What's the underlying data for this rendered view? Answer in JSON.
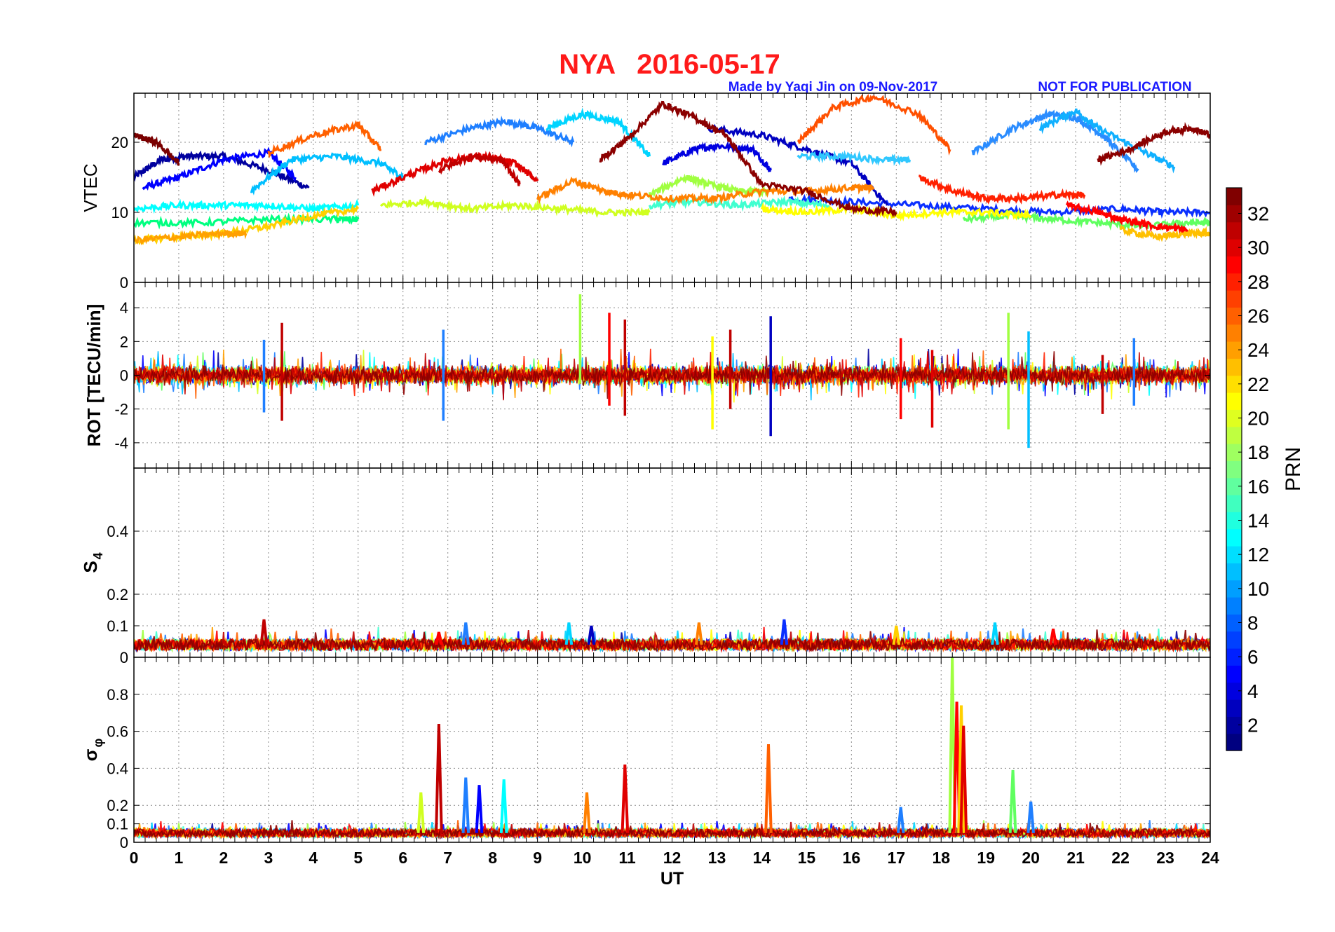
{
  "figure": {
    "station": "NYA",
    "date": "2016-05-17",
    "credit": "Made by Yaqi Jin on 09-Nov-2017",
    "disclaimer": "NOT FOR PUBLICATION"
  },
  "colors": {
    "title": "#ff1a1a",
    "credit": "#1a1aff",
    "axis": "#000000",
    "grid": "#8c8c8c"
  },
  "chart_data": [
    {
      "type": "line",
      "panel": "vtec",
      "ylabel": "VTEC",
      "ylim": [
        0,
        27
      ],
      "yticks": [
        0,
        10,
        20
      ],
      "xlim": [
        0,
        24
      ],
      "grid": true,
      "series": [
        {
          "prn": 2,
          "color": "#00009f",
          "x": [
            0.0,
            0.6,
            1.2,
            2.0,
            3.0,
            3.9
          ],
          "values": [
            15,
            17.5,
            18,
            18,
            16,
            13.5
          ]
        },
        {
          "prn": 4,
          "color": "#0000ff",
          "x": [
            0.2,
            1.0,
            2.0,
            3.0,
            3.6
          ],
          "values": [
            13.5,
            15,
            17.5,
            18.5,
            15
          ]
        },
        {
          "prn": 5,
          "color": "#0a2fff",
          "x": [
            14.6,
            16.0,
            17.5,
            19.0,
            20.5,
            22.0,
            23.0,
            24.0
          ],
          "values": [
            12,
            11.5,
            11,
            10.5,
            10,
            10.5,
            10,
            10
          ]
        },
        {
          "prn": 6,
          "color": "#0000e0",
          "x": [
            11.8,
            12.5,
            13.0,
            13.8,
            14.2
          ],
          "values": [
            17,
            19,
            19.5,
            19,
            16
          ]
        },
        {
          "prn": 7,
          "color": "#0000c0",
          "x": [
            12.8,
            14.0,
            15.0,
            16.0,
            16.8
          ],
          "values": [
            22,
            21,
            19,
            17,
            11
          ]
        },
        {
          "prn": 8,
          "color": "#1f7fff",
          "x": [
            6.5,
            7.5,
            8.3,
            9.0,
            9.8
          ],
          "values": [
            20,
            22,
            23,
            22,
            20
          ]
        },
        {
          "prn": 9,
          "color": "#2a8cff",
          "x": [
            18.7,
            19.6,
            20.4,
            21.0,
            21.6,
            22.4
          ],
          "values": [
            18.5,
            22,
            24,
            23.5,
            21,
            16
          ]
        },
        {
          "prn": 10,
          "color": "#00bfff",
          "x": [
            2.6,
            3.5,
            4.5,
            5.5,
            6.0
          ],
          "values": [
            13,
            17.5,
            18,
            17,
            15
          ]
        },
        {
          "prn": 11,
          "color": "#00d4ff",
          "x": [
            9.2,
            10.0,
            10.8,
            11.5
          ],
          "values": [
            22,
            24,
            23,
            18
          ]
        },
        {
          "prn": 12,
          "color": "#30c8ff",
          "x": [
            14.8,
            15.8,
            16.8,
            17.3
          ],
          "values": [
            18,
            18,
            17.5,
            17.5
          ]
        },
        {
          "prn": 13,
          "color": "#10b0ff",
          "x": [
            20.2,
            21.0,
            21.5,
            22.4,
            23.2
          ],
          "values": [
            22,
            24.5,
            22,
            19,
            16.5
          ]
        },
        {
          "prn": 14,
          "color": "#00ffff",
          "x": [
            0.0,
            1.0,
            2.0,
            3.0,
            4.0,
            5.0
          ],
          "values": [
            10.5,
            11,
            11,
            11,
            10.5,
            11
          ]
        },
        {
          "prn": 15,
          "color": "#40ffd0",
          "x": [
            11.5,
            12.5,
            13.5,
            14.5,
            15.5
          ],
          "values": [
            11,
            11.5,
            11,
            11.5,
            11
          ]
        },
        {
          "prn": 16,
          "color": "#00ff80",
          "x": [
            0.0,
            1.5,
            3.0,
            4.5,
            5.0
          ],
          "values": [
            8.5,
            8.5,
            9,
            9,
            9
          ]
        },
        {
          "prn": 17,
          "color": "#60ff60",
          "x": [
            18.5,
            19.5,
            20.5,
            21.5,
            22.5,
            23.5,
            24.0
          ],
          "values": [
            9,
            9.5,
            9,
            8.5,
            8,
            8.5,
            8.5
          ]
        },
        {
          "prn": 18,
          "color": "#a0ff40",
          "x": [
            11.5,
            12.3,
            12.8,
            13.5,
            14.2
          ],
          "values": [
            12.5,
            15,
            14,
            13,
            13
          ]
        },
        {
          "prn": 19,
          "color": "#d0ff20",
          "x": [
            5.5,
            6.5,
            7.5,
            8.5,
            9.5,
            10.5,
            11.5
          ],
          "values": [
            11,
            11.5,
            10.5,
            11,
            10.5,
            10,
            10
          ]
        },
        {
          "prn": 20,
          "color": "#ffff00",
          "x": [
            14.0,
            15.0,
            16.0,
            17.0,
            18.0,
            19.0,
            20.0
          ],
          "values": [
            10.5,
            10,
            10.5,
            9.5,
            10,
            10,
            9.5
          ]
        },
        {
          "prn": 22,
          "color": "#ffd000",
          "x": [
            0.0,
            1.0,
            2.0,
            3.0,
            4.0,
            5.0
          ],
          "values": [
            6,
            6.5,
            7,
            8,
            9.5,
            10.5
          ]
        },
        {
          "prn": 23,
          "color": "#ffc000",
          "x": [
            22.0,
            22.8,
            23.5,
            24.0
          ],
          "values": [
            7.5,
            6.5,
            7,
            7
          ]
        },
        {
          "prn": 24,
          "color": "#ffa000",
          "x": [
            0.0,
            1.0,
            2.0,
            2.5
          ],
          "values": [
            6,
            6.5,
            7,
            7
          ]
        },
        {
          "prn": 25,
          "color": "#ff8000",
          "x": [
            9.0,
            9.8,
            10.5,
            11.0,
            12.0,
            13.0,
            14.0,
            15.0,
            16.0,
            16.5
          ],
          "values": [
            12,
            14.5,
            13,
            12.5,
            12,
            12,
            13,
            13,
            13.5,
            13.5
          ]
        },
        {
          "prn": 26,
          "color": "#ff6000",
          "x": [
            3.0,
            4.0,
            5.0,
            5.5
          ],
          "values": [
            18.5,
            21,
            22.5,
            19
          ]
        },
        {
          "prn": 27,
          "color": "#ff5000",
          "x": [
            14.8,
            15.6,
            16.5,
            17.5,
            18.2
          ],
          "values": [
            20,
            25,
            26.5,
            24,
            19
          ]
        },
        {
          "prn": 28,
          "color": "#ff2000",
          "x": [
            17.5,
            18.3,
            19.0,
            19.8,
            20.6,
            21.2
          ],
          "values": [
            15,
            13,
            12,
            12,
            12.5,
            12.5
          ]
        },
        {
          "prn": 29,
          "color": "#ff0000",
          "x": [
            20.8,
            21.5,
            22.0,
            22.8,
            23.5
          ],
          "values": [
            11,
            10,
            9,
            8,
            7.5
          ]
        },
        {
          "prn": 30,
          "color": "#e00000",
          "x": [
            5.3,
            6.2,
            7.0,
            7.8,
            8.5,
            9.0
          ],
          "values": [
            13,
            15.5,
            17.5,
            18,
            17,
            14.5
          ]
        },
        {
          "prn": 31,
          "color": "#c00000",
          "x": [
            6.8,
            7.5,
            8.2,
            8.6
          ],
          "values": [
            16,
            18,
            17.5,
            14
          ]
        },
        {
          "prn": 32,
          "color": "#8b0000",
          "x": [
            10.4,
            11.0,
            11.8,
            12.5,
            13.2,
            14.0,
            15.0,
            16.0,
            17.0
          ],
          "values": [
            17.5,
            20.5,
            25.5,
            23.5,
            21,
            14,
            13,
            10.5,
            10
          ]
        },
        {
          "prn": 33,
          "color": "#7a0000",
          "x": [
            0.0,
            0.5,
            1.0
          ],
          "values": [
            21,
            20,
            17
          ]
        },
        {
          "prn": 32,
          "color": "#8b0000",
          "x": [
            21.5,
            22.2,
            23.0,
            23.6,
            24.0
          ],
          "values": [
            17.5,
            19,
            21.5,
            22,
            21
          ]
        }
      ]
    },
    {
      "type": "line",
      "panel": "rot",
      "ylabel": "ROT [TECU/min]",
      "ylim": [
        -5.5,
        5.5
      ],
      "yticks": [
        -4,
        -2,
        0,
        2,
        4
      ],
      "xlim": [
        0,
        24
      ],
      "grid": true,
      "spikes": [
        {
          "x": 3.3,
          "min": -2.7,
          "max": 3.1,
          "color": "#c00000"
        },
        {
          "x": 2.9,
          "min": -2.2,
          "max": 2.1,
          "color": "#1f7fff"
        },
        {
          "x": 6.9,
          "min": -2.7,
          "max": 2.7,
          "color": "#1f7fff"
        },
        {
          "x": 9.95,
          "min": -0.5,
          "max": 4.8,
          "color": "#a0ff40"
        },
        {
          "x": 10.6,
          "min": -1.8,
          "max": 3.7,
          "color": "#ff0000"
        },
        {
          "x": 10.95,
          "min": -2.4,
          "max": 3.3,
          "color": "#c00000"
        },
        {
          "x": 12.9,
          "min": -3.2,
          "max": 2.3,
          "color": "#ffff00"
        },
        {
          "x": 13.3,
          "min": -2.0,
          "max": 2.7,
          "color": "#c00000"
        },
        {
          "x": 14.2,
          "min": -3.6,
          "max": 3.5,
          "color": "#0000c0"
        },
        {
          "x": 17.1,
          "min": -2.6,
          "max": 2.2,
          "color": "#ff0000"
        },
        {
          "x": 17.8,
          "min": -3.1,
          "max": 1.5,
          "color": "#e00000"
        },
        {
          "x": 19.5,
          "min": -3.2,
          "max": 3.7,
          "color": "#a0ff40"
        },
        {
          "x": 19.95,
          "min": -4.3,
          "max": 2.6,
          "color": "#00bfff"
        },
        {
          "x": 21.6,
          "min": -2.3,
          "max": 1.2,
          "color": "#c00000"
        },
        {
          "x": 22.3,
          "min": -1.8,
          "max": 2.2,
          "color": "#1f7fff"
        }
      ],
      "noise_band": 0.5
    },
    {
      "type": "line",
      "panel": "s4",
      "ylabel": "S",
      "ylabel_sub": "4",
      "ylim": [
        0,
        0.6
      ],
      "yticks": [
        0,
        0.1,
        0.2,
        0.4
      ],
      "xlim": [
        0,
        24
      ],
      "grid": true,
      "baseline": 0.04,
      "peaks": [
        {
          "x": 2.9,
          "y": 0.12,
          "color": "#c00000"
        },
        {
          "x": 6.8,
          "y": 0.08,
          "color": "#ff0000"
        },
        {
          "x": 7.4,
          "y": 0.11,
          "color": "#1f7fff"
        },
        {
          "x": 9.7,
          "y": 0.11,
          "color": "#00d4ff"
        },
        {
          "x": 10.2,
          "y": 0.1,
          "color": "#0000c0"
        },
        {
          "x": 12.6,
          "y": 0.11,
          "color": "#ff8000"
        },
        {
          "x": 14.5,
          "y": 0.12,
          "color": "#0a2fff"
        },
        {
          "x": 17.0,
          "y": 0.1,
          "color": "#ffd000"
        },
        {
          "x": 19.2,
          "y": 0.11,
          "color": "#00d4ff"
        },
        {
          "x": 20.5,
          "y": 0.09,
          "color": "#ff0000"
        }
      ]
    },
    {
      "type": "line",
      "panel": "sigma-phi",
      "ylabel": "σ",
      "ylabel_sub": "φ",
      "ylim": [
        0,
        1.0
      ],
      "yticks": [
        0,
        0.1,
        0.2,
        0.4,
        0.6,
        0.8
      ],
      "xlim": [
        0,
        24
      ],
      "xticks": [
        0,
        1,
        2,
        3,
        4,
        5,
        6,
        7,
        8,
        9,
        10,
        11,
        12,
        13,
        14,
        15,
        16,
        17,
        18,
        19,
        20,
        21,
        22,
        23,
        24
      ],
      "xlabel": "UT",
      "grid": true,
      "baseline": 0.05,
      "peaks": [
        {
          "x": 6.8,
          "y": 0.64,
          "color": "#c00000"
        },
        {
          "x": 6.4,
          "y": 0.27,
          "color": "#d0ff20"
        },
        {
          "x": 7.4,
          "y": 0.35,
          "color": "#1f7fff"
        },
        {
          "x": 7.7,
          "y": 0.31,
          "color": "#0000ff"
        },
        {
          "x": 8.25,
          "y": 0.34,
          "color": "#00ffff"
        },
        {
          "x": 10.1,
          "y": 0.27,
          "color": "#ff8000"
        },
        {
          "x": 10.95,
          "y": 0.42,
          "color": "#e00000"
        },
        {
          "x": 14.15,
          "y": 0.53,
          "color": "#ff6000"
        },
        {
          "x": 18.25,
          "y": 1.0,
          "color": "#a0ff40"
        },
        {
          "x": 18.35,
          "y": 0.76,
          "color": "#ff0000"
        },
        {
          "x": 18.45,
          "y": 0.74,
          "color": "#ffd000"
        },
        {
          "x": 18.5,
          "y": 0.63,
          "color": "#e00000"
        },
        {
          "x": 19.6,
          "y": 0.39,
          "color": "#60ff60"
        },
        {
          "x": 20.0,
          "y": 0.22,
          "color": "#1f7fff"
        },
        {
          "x": 17.1,
          "y": 0.19,
          "color": "#1f7fff"
        }
      ]
    }
  ],
  "colorbar": {
    "label": "PRN",
    "ticks": [
      "32",
      "30",
      "28",
      "26",
      "24",
      "22",
      "20",
      "18",
      "16",
      "14",
      "12",
      "10",
      "8",
      "6",
      "4",
      "2"
    ],
    "range": [
      1,
      33
    ]
  }
}
